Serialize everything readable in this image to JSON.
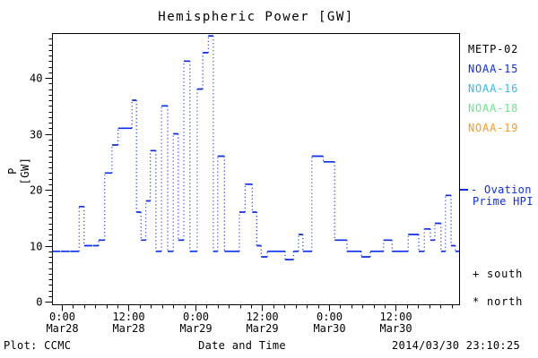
{
  "chart_data": {
    "type": "line",
    "subtype": "step-stairs-dotted-risers",
    "title": "Hemispheric Power [GW]",
    "xlabel": "Date and Time",
    "ylabel": "P [GW]",
    "ylim": [
      0,
      48
    ],
    "grid": false,
    "y_major_ticks": [
      0,
      10,
      20,
      30,
      40
    ],
    "y_minor_step": 1,
    "x_epoch": "hours since Mar28 0:00",
    "x_hours_range": [
      -1.8,
      71.5
    ],
    "x_minor_step_hours": 2,
    "x_major_ticks": [
      {
        "t": 0,
        "time": "0:00",
        "date": "Mar28"
      },
      {
        "t": 12,
        "time": "12:00",
        "date": "Mar28"
      },
      {
        "t": 24,
        "time": "0:00",
        "date": "Mar29"
      },
      {
        "t": 36,
        "time": "12:00",
        "date": "Mar29"
      },
      {
        "t": 48,
        "time": "0:00",
        "date": "Mar30"
      },
      {
        "t": 60,
        "time": "12:00",
        "date": "Mar30"
      }
    ],
    "series": [
      {
        "name": "Ovation Prime HPI",
        "color": "#0b2df0",
        "unit": "GW",
        "segments_t0_t1_gw": [
          [
            -1.8,
            -0.3,
            9
          ],
          [
            -0.2,
            1.4,
            9
          ],
          [
            1.5,
            3.1,
            9
          ],
          [
            3.1,
            4.0,
            17
          ],
          [
            4.0,
            5.5,
            10
          ],
          [
            5.6,
            6.6,
            10
          ],
          [
            6.6,
            7.7,
            11
          ],
          [
            7.7,
            9.0,
            23
          ],
          [
            9.0,
            10.1,
            28
          ],
          [
            10.1,
            11.4,
            31
          ],
          [
            11.4,
            12.6,
            31
          ],
          [
            12.6,
            13.4,
            36
          ],
          [
            13.4,
            14.2,
            16
          ],
          [
            14.2,
            15.1,
            11
          ],
          [
            15.1,
            15.9,
            18
          ],
          [
            15.9,
            16.9,
            27
          ],
          [
            16.9,
            17.9,
            9
          ],
          [
            17.9,
            19.0,
            35
          ],
          [
            19.0,
            20.0,
            9
          ],
          [
            20.0,
            20.9,
            30
          ],
          [
            20.9,
            21.9,
            11
          ],
          [
            21.9,
            23.0,
            43
          ],
          [
            23.0,
            24.3,
            9
          ],
          [
            24.3,
            25.3,
            38
          ],
          [
            25.3,
            26.3,
            44.5
          ],
          [
            26.3,
            27.2,
            47.5
          ],
          [
            27.2,
            28.0,
            9
          ],
          [
            28.0,
            29.2,
            26
          ],
          [
            29.2,
            30.4,
            9
          ],
          [
            30.4,
            31.9,
            9
          ],
          [
            31.9,
            32.9,
            16
          ],
          [
            32.9,
            34.2,
            21
          ],
          [
            34.2,
            35.0,
            16
          ],
          [
            35.0,
            35.8,
            10
          ],
          [
            35.8,
            36.9,
            8
          ],
          [
            36.9,
            40.1,
            9
          ],
          [
            40.1,
            41.6,
            7.5
          ],
          [
            41.6,
            42.5,
            9
          ],
          [
            42.5,
            43.3,
            12
          ],
          [
            43.3,
            44.9,
            9
          ],
          [
            44.9,
            46.9,
            26
          ],
          [
            47.0,
            49.0,
            25
          ],
          [
            49.0,
            51.2,
            11
          ],
          [
            51.2,
            53.8,
            9
          ],
          [
            53.8,
            55.4,
            8
          ],
          [
            55.4,
            57.8,
            9
          ],
          [
            57.8,
            59.3,
            11
          ],
          [
            59.3,
            62.2,
            9
          ],
          [
            62.2,
            63.3,
            12
          ],
          [
            63.3,
            64.1,
            12
          ],
          [
            64.1,
            65.1,
            9
          ],
          [
            65.1,
            66.2,
            13
          ],
          [
            66.2,
            67.0,
            11
          ],
          [
            67.0,
            68.1,
            14
          ],
          [
            68.1,
            68.9,
            9
          ],
          [
            68.9,
            69.9,
            19
          ],
          [
            69.9,
            70.7,
            10
          ],
          [
            70.7,
            71.5,
            9
          ]
        ]
      }
    ]
  },
  "legend": {
    "satellites": [
      {
        "label": "METP-02",
        "color": "#000000"
      },
      {
        "label": "NOAA-15",
        "color": "#0b2df0"
      },
      {
        "label": "NOAA-16",
        "color": "#33bbee"
      },
      {
        "label": "NOAA-18",
        "color": "#66e68c"
      },
      {
        "label": "NOAA-19",
        "color": "#ff9922"
      }
    ],
    "line_sample": {
      "line1": "- Ovation",
      "line2": "Prime HPI",
      "color": "#0b2df0"
    },
    "markers": [
      {
        "text": "+ south"
      },
      {
        "text": "* north"
      }
    ]
  },
  "footer": {
    "credit": "Plot: CCMC",
    "timestamp": "2014/03/30 23:10:25"
  }
}
